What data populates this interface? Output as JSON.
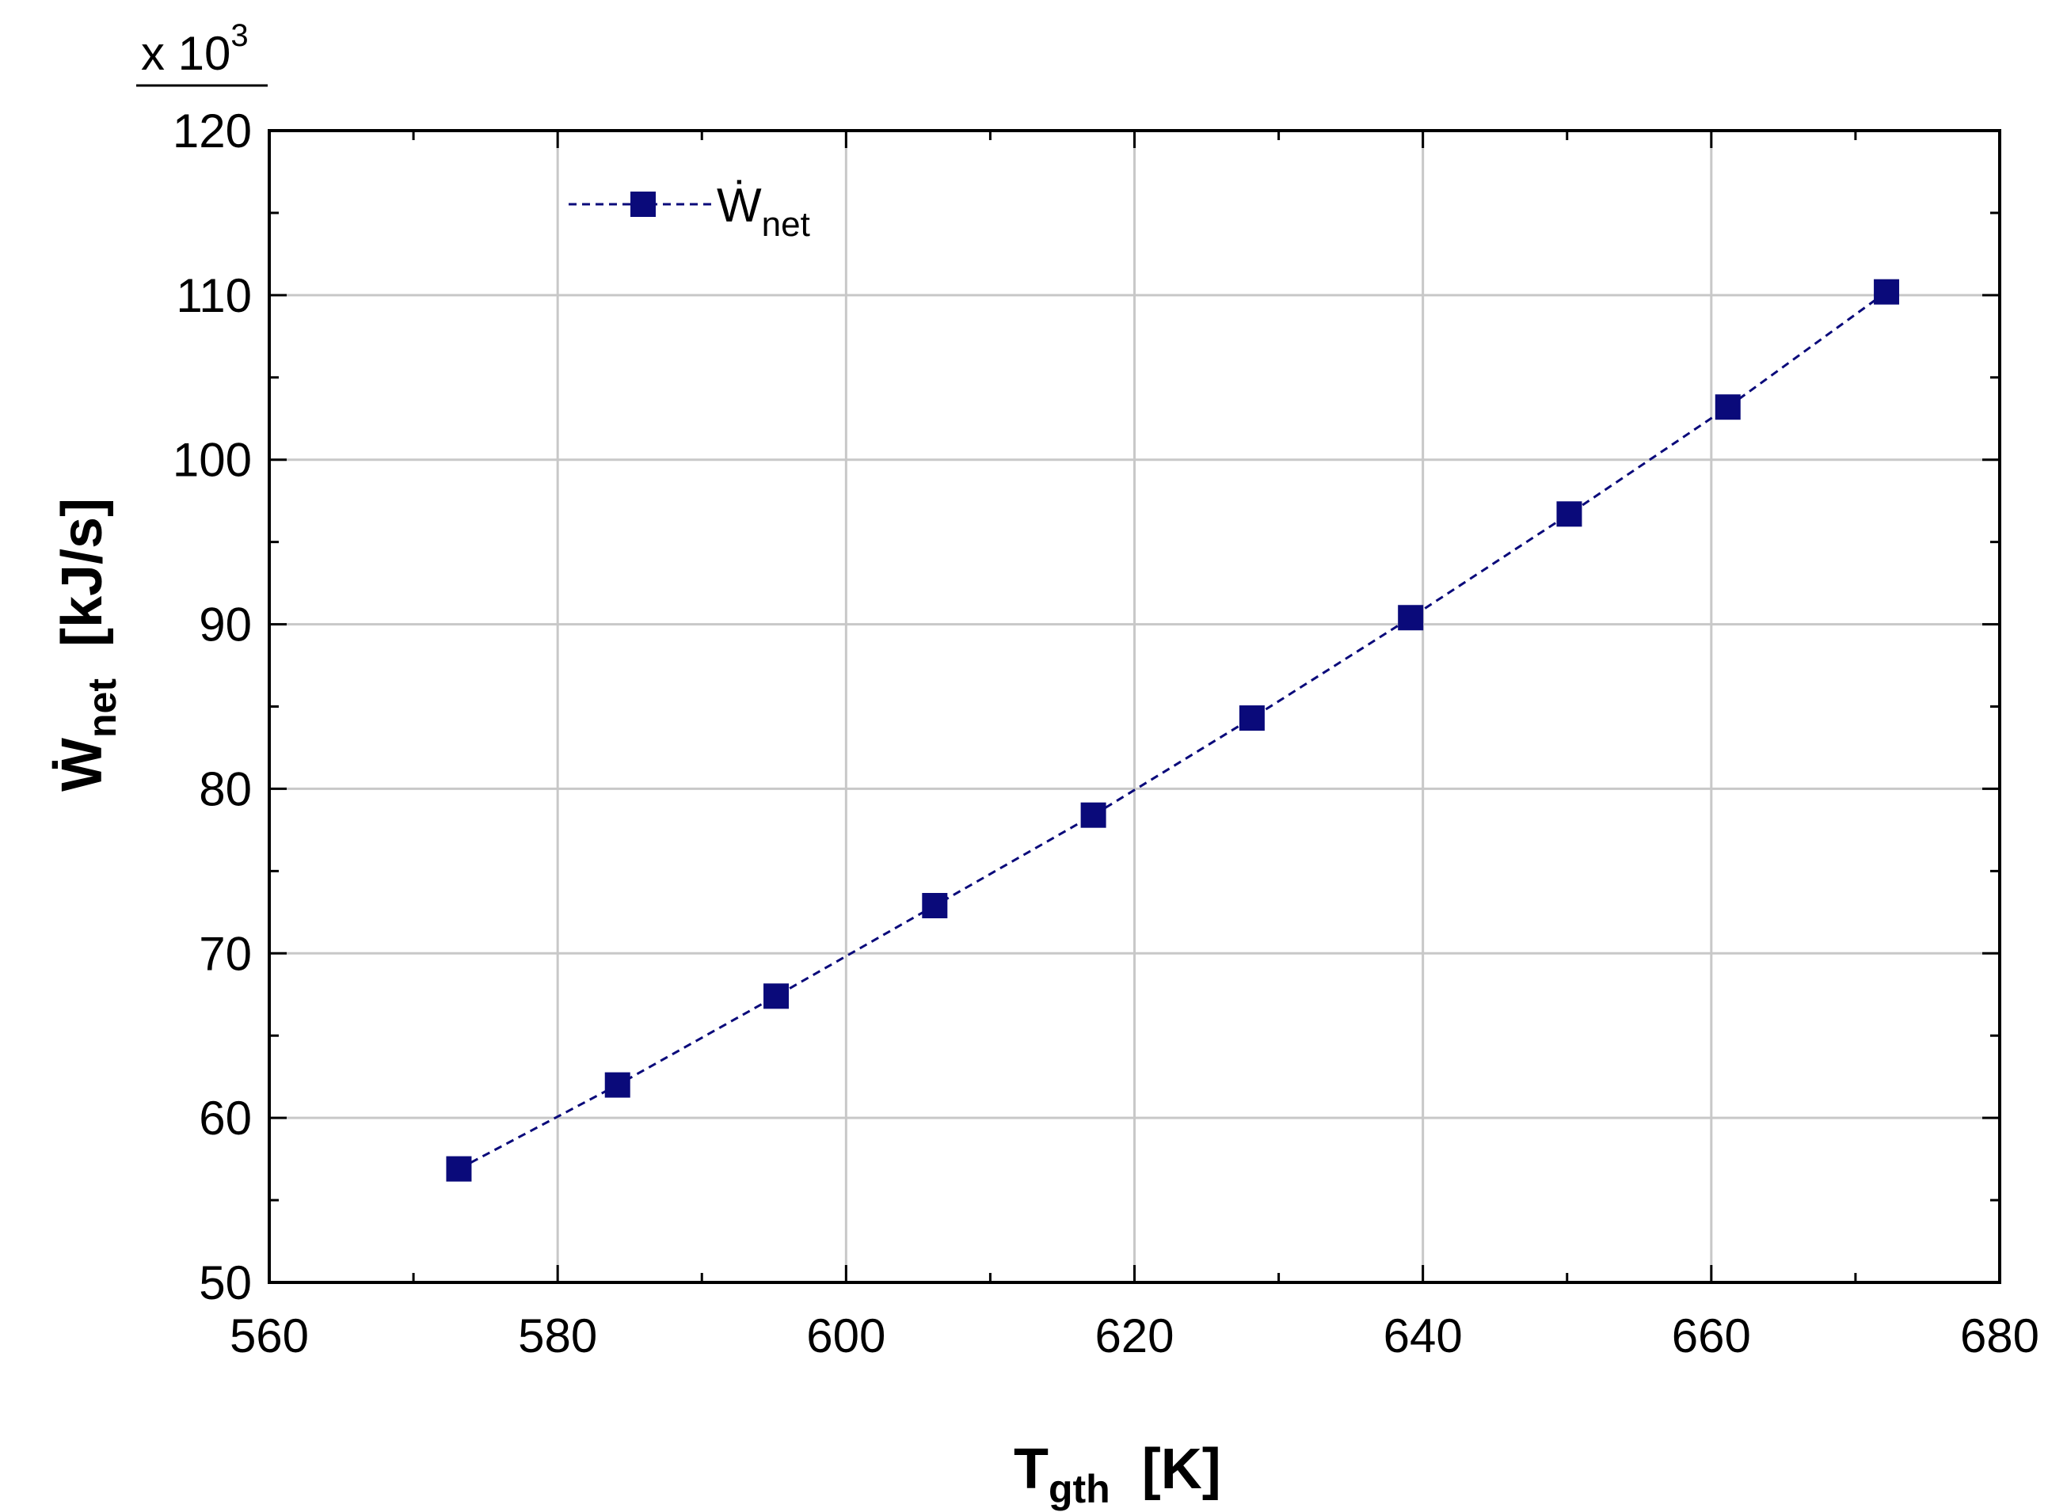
{
  "chart_data": {
    "type": "line",
    "multiplier_label": "x 10",
    "multiplier_exponent": "3",
    "x": [
      573.15,
      584.15,
      595.15,
      606.15,
      617.15,
      628.15,
      639.15,
      650.15,
      661.15,
      672.15
    ],
    "series": [
      {
        "name_base": "Ẇ",
        "name_sub": "net",
        "values": [
          56.9,
          62.0,
          67.4,
          72.9,
          78.4,
          84.3,
          90.4,
          96.7,
          103.2,
          110.2
        ],
        "color": "#0a0a7a",
        "line_style": "dashed",
        "marker": "square"
      }
    ],
    "xlabel_base": "T",
    "xlabel_sub": "gth",
    "xlabel_unit": "[K]",
    "ylabel_base": "Ẇ",
    "ylabel_sub": "net",
    "ylabel_unit": "[kJ/s]",
    "xlim": [
      560,
      680
    ],
    "ylim": [
      50,
      120
    ],
    "xticks": [
      560,
      580,
      600,
      620,
      640,
      660,
      680
    ],
    "yticks": [
      50,
      60,
      70,
      80,
      90,
      100,
      110,
      120
    ],
    "grid": true,
    "legend_position": "top-left",
    "gridline_color": "#c8c8c8"
  }
}
